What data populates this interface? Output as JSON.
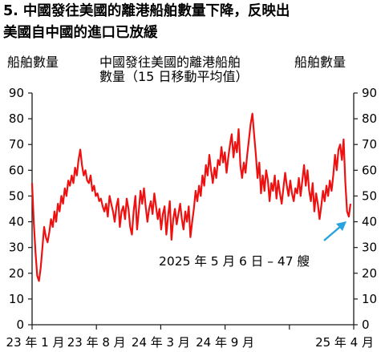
{
  "chart_data": {
    "type": "line",
    "title_lines": [
      "5. 中國發往美國的離港船舶數量下降，反映出",
      "美國自中國的進口已放緩"
    ],
    "left_axis_label": "船舶數量",
    "series_label_lines": [
      "中國發往美國的離港船舶",
      "數量（15 日移動平均值）"
    ],
    "right_axis_label": "船舶數量",
    "ylim": [
      0,
      90
    ],
    "y_ticks": [
      "0",
      "10",
      "20",
      "30",
      "40",
      "50",
      "60",
      "70",
      "80",
      "90"
    ],
    "x_tick_labels": [
      "23 年 1 月",
      "23 年 8 月",
      "24 年 3 月",
      "24 年 9 月",
      "25 年 4 月"
    ],
    "annotation": "2025 年 5 月 6 日 – 47 艘",
    "colors": {
      "series": "#ee1111",
      "arrow": "#29a3dd",
      "axis": "#1a1a1a"
    },
    "series": [
      {
        "values": [
          55,
          40,
          28,
          19,
          17,
          22,
          30,
          38,
          34,
          32,
          36,
          41,
          38,
          44,
          40,
          47,
          44,
          50,
          47,
          53,
          50,
          56,
          54,
          58,
          55,
          61,
          58,
          64,
          68,
          62,
          58,
          60,
          56,
          55,
          58,
          52,
          54,
          50,
          51,
          48,
          49,
          46,
          44,
          47,
          42,
          50,
          47,
          44,
          40,
          46,
          49,
          38,
          44,
          46,
          41,
          49,
          45,
          38,
          35,
          44,
          50,
          37,
          44,
          52,
          47,
          53,
          46,
          40,
          45,
          48,
          43,
          51,
          46,
          41,
          45,
          37,
          43,
          46,
          35,
          42,
          48,
          33,
          41,
          45,
          39,
          43,
          47,
          41,
          37,
          44,
          40,
          46,
          34,
          40,
          45,
          52,
          48,
          54,
          50,
          58,
          54,
          62,
          58,
          66,
          60,
          55,
          61,
          57,
          64,
          62,
          69,
          63,
          67,
          59,
          65,
          70,
          74,
          65,
          71,
          67,
          76,
          62,
          57,
          63,
          59,
          66,
          72,
          78,
          82,
          74,
          66,
          57,
          63,
          51,
          58,
          52,
          60,
          56,
          48,
          55,
          52,
          58,
          49,
          56,
          51,
          47,
          53,
          59,
          54,
          50,
          56,
          51,
          48,
          53,
          51,
          57,
          50,
          56,
          62,
          54,
          60,
          52,
          48,
          55,
          44,
          51,
          47,
          41,
          46,
          52,
          48,
          54,
          50,
          56,
          52,
          58,
          66,
          60,
          68,
          70,
          64,
          72,
          55,
          44,
          42,
          47
        ]
      }
    ]
  }
}
